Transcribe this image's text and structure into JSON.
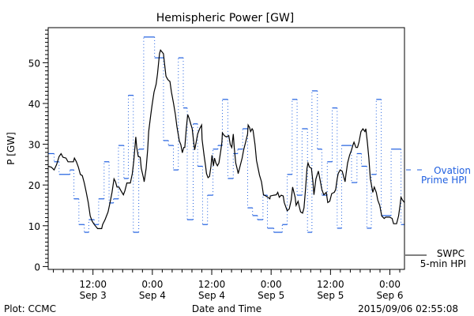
{
  "chart_data": {
    "type": "line",
    "title": "Hemispheric Power [GW]",
    "xlabel": "Date and Time",
    "ylabel": "P [GW]",
    "x_units": "hours since 2015/09/03 ~02:55",
    "xlim": [
      0,
      72
    ],
    "ylim": [
      -0.7,
      58.6
    ],
    "y_ticks": [
      0,
      10,
      20,
      30,
      40,
      50
    ],
    "y_minor_step": 1,
    "x_ticks": [
      {
        "h": 9.05,
        "time": "12:00",
        "date": "Sep 3"
      },
      {
        "h": 21.05,
        "time": "0:00",
        "date": "Sep 4"
      },
      {
        "h": 33.05,
        "time": "12:00",
        "date": "Sep 4"
      },
      {
        "h": 45.05,
        "time": "0:00",
        "date": "Sep 5"
      },
      {
        "h": 57.05,
        "time": "12:00",
        "date": "Sep 5"
      },
      {
        "h": 69.05,
        "time": "0:00",
        "date": "Sep 6"
      }
    ],
    "x_minor_step": 2,
    "series": [
      {
        "name": "Ovation Prime HPI",
        "legend": [
          "Ovation",
          "Prime HPI"
        ],
        "color": "#1f5fe0",
        "style": "step",
        "steps": [
          [
            0,
            27.7
          ],
          [
            1.2,
            25.7
          ],
          [
            2.2,
            22.6
          ],
          [
            4.4,
            23.7
          ],
          [
            5.2,
            16.6
          ],
          [
            6.2,
            10.3
          ],
          [
            7.3,
            8.4
          ],
          [
            8.2,
            11.5
          ],
          [
            9.3,
            10.3
          ],
          [
            10.2,
            16.6
          ],
          [
            11.3,
            25.7
          ],
          [
            12.3,
            15.6
          ],
          [
            13.2,
            16.6
          ],
          [
            14.2,
            29.7
          ],
          [
            15.3,
            21.6
          ],
          [
            16.2,
            42.0
          ],
          [
            17.2,
            8.4
          ],
          [
            18.3,
            28.8
          ],
          [
            19.3,
            56.3
          ],
          [
            21.5,
            51.2
          ],
          [
            23.3,
            30.9
          ],
          [
            24.3,
            29.7
          ],
          [
            25.3,
            23.7
          ],
          [
            26.3,
            51.2
          ],
          [
            27.3,
            38.9
          ],
          [
            28.1,
            11.5
          ],
          [
            29.3,
            35.0
          ],
          [
            30.2,
            24.6
          ],
          [
            31.2,
            10.3
          ],
          [
            32.2,
            17.5
          ],
          [
            33.3,
            28.8
          ],
          [
            34.3,
            29.7
          ],
          [
            35.2,
            41.0
          ],
          [
            36.3,
            21.6
          ],
          [
            37.4,
            27.7
          ],
          [
            38.3,
            28.8
          ],
          [
            39.3,
            33.8
          ],
          [
            40.3,
            14.4
          ],
          [
            41.3,
            12.5
          ],
          [
            42.3,
            11.5
          ],
          [
            43.4,
            17.5
          ],
          [
            44.3,
            9.4
          ],
          [
            45.6,
            8.4
          ],
          [
            47.3,
            10.3
          ],
          [
            48.3,
            22.6
          ],
          [
            49.3,
            41.0
          ],
          [
            50.3,
            17.5
          ],
          [
            51.3,
            33.8
          ],
          [
            52.4,
            8.4
          ],
          [
            53.3,
            43.1
          ],
          [
            54.4,
            28.8
          ],
          [
            55.3,
            17.5
          ],
          [
            56.4,
            25.7
          ],
          [
            57.4,
            38.9
          ],
          [
            58.4,
            9.4
          ],
          [
            59.3,
            29.7
          ],
          [
            61.3,
            20.6
          ],
          [
            62.4,
            27.7
          ],
          [
            63.3,
            24.6
          ],
          [
            64.4,
            9.4
          ],
          [
            65.3,
            22.6
          ],
          [
            66.3,
            41.0
          ],
          [
            67.3,
            12.5
          ],
          [
            69.3,
            28.8
          ],
          [
            71.3,
            10.3
          ],
          [
            72,
            10.3
          ]
        ]
      },
      {
        "name": "SWPC 5-min HPI",
        "legend": [
          "SWPC",
          "5-min HPI"
        ],
        "color": "#000000",
        "style": "line",
        "points": [
          [
            0,
            24.6
          ],
          [
            0.6,
            24.4
          ],
          [
            1.2,
            23.7
          ],
          [
            1.7,
            25.0
          ],
          [
            2.2,
            27.0
          ],
          [
            2.6,
            27.7
          ],
          [
            3.0,
            26.8
          ],
          [
            3.6,
            26.6
          ],
          [
            4.0,
            25.7
          ],
          [
            5.1,
            25.7
          ],
          [
            5.3,
            26.6
          ],
          [
            5.7,
            25.7
          ],
          [
            6.1,
            24.4
          ],
          [
            6.5,
            22.6
          ],
          [
            6.9,
            22.3
          ],
          [
            7.3,
            20.5
          ],
          [
            7.7,
            18.2
          ],
          [
            8.1,
            15.7
          ],
          [
            8.5,
            12.4
          ],
          [
            8.9,
            11.1
          ],
          [
            9.3,
            10.3
          ],
          [
            10.0,
            9.3
          ],
          [
            10.8,
            9.3
          ],
          [
            11.0,
            10.3
          ],
          [
            11.5,
            11.5
          ],
          [
            12.1,
            13.4
          ],
          [
            12.5,
            15.7
          ],
          [
            12.9,
            18.2
          ],
          [
            13.3,
            21.5
          ],
          [
            13.6,
            20.8
          ],
          [
            13.9,
            19.5
          ],
          [
            14.3,
            19.5
          ],
          [
            14.7,
            18.6
          ],
          [
            15.2,
            17.6
          ],
          [
            15.5,
            18.6
          ],
          [
            15.9,
            20.5
          ],
          [
            16.6,
            20.5
          ],
          [
            17.0,
            22.8
          ],
          [
            17.3,
            26.0
          ],
          [
            17.7,
            31.8
          ],
          [
            17.9,
            29.2
          ],
          [
            18.2,
            27.0
          ],
          [
            18.6,
            26.8
          ],
          [
            18.8,
            24.1
          ],
          [
            19.3,
            21.5
          ],
          [
            19.4,
            20.8
          ],
          [
            19.8,
            24.1
          ],
          [
            20.1,
            28.6
          ],
          [
            20.3,
            33.1
          ],
          [
            20.7,
            37.0
          ],
          [
            21.0,
            39.6
          ],
          [
            21.4,
            42.8
          ],
          [
            21.8,
            44.7
          ],
          [
            22.1,
            47.3
          ],
          [
            22.5,
            52.2
          ],
          [
            22.7,
            53.1
          ],
          [
            23.3,
            52.2
          ],
          [
            23.5,
            49.9
          ],
          [
            23.8,
            46.7
          ],
          [
            24.1,
            46.0
          ],
          [
            24.3,
            45.7
          ],
          [
            24.6,
            45.4
          ],
          [
            24.9,
            42.8
          ],
          [
            25.3,
            40.2
          ],
          [
            25.7,
            37.3
          ],
          [
            26.0,
            34.4
          ],
          [
            26.5,
            30.8
          ],
          [
            26.8,
            29.9
          ],
          [
            27.1,
            27.9
          ],
          [
            27.4,
            29.2
          ],
          [
            27.6,
            29.2
          ],
          [
            27.9,
            33.8
          ],
          [
            28.2,
            37.3
          ],
          [
            28.5,
            36.3
          ],
          [
            28.8,
            35.0
          ],
          [
            29.1,
            33.8
          ],
          [
            29.4,
            30.5
          ],
          [
            29.6,
            28.6
          ],
          [
            29.9,
            30.5
          ],
          [
            30.2,
            32.5
          ],
          [
            30.6,
            33.8
          ],
          [
            31.0,
            34.7
          ],
          [
            31.1,
            31.2
          ],
          [
            31.5,
            27.3
          ],
          [
            31.8,
            24.7
          ],
          [
            32.0,
            22.8
          ],
          [
            32.3,
            21.8
          ],
          [
            32.6,
            22.1
          ],
          [
            32.9,
            24.7
          ],
          [
            33.1,
            27.3
          ],
          [
            33.4,
            24.7
          ],
          [
            33.6,
            26.6
          ],
          [
            33.9,
            25.4
          ],
          [
            34.2,
            24.7
          ],
          [
            34.5,
            25.4
          ],
          [
            34.9,
            28.6
          ],
          [
            35.1,
            30.5
          ],
          [
            35.2,
            32.8
          ],
          [
            35.6,
            32.1
          ],
          [
            36.0,
            31.8
          ],
          [
            36.5,
            32.1
          ],
          [
            36.8,
            29.9
          ],
          [
            37.1,
            29.2
          ],
          [
            37.4,
            32.5
          ],
          [
            37.6,
            29.2
          ],
          [
            37.9,
            25.4
          ],
          [
            38.3,
            23.4
          ],
          [
            38.4,
            22.8
          ],
          [
            38.8,
            24.7
          ],
          [
            39.2,
            26.6
          ],
          [
            39.5,
            28.6
          ],
          [
            39.9,
            30.5
          ],
          [
            40.3,
            32.5
          ],
          [
            40.4,
            34.7
          ],
          [
            40.7,
            34.1
          ],
          [
            40.9,
            33.1
          ],
          [
            41.2,
            33.8
          ],
          [
            41.4,
            33.4
          ],
          [
            41.8,
            29.9
          ],
          [
            42.1,
            26.0
          ],
          [
            42.7,
            22.4
          ],
          [
            43.1,
            20.8
          ],
          [
            43.5,
            17.6
          ],
          [
            44.0,
            17.3
          ],
          [
            44.4,
            17.0
          ],
          [
            44.8,
            16.6
          ],
          [
            44.9,
            17.3
          ],
          [
            45.6,
            17.5
          ],
          [
            46.1,
            17.6
          ],
          [
            46.4,
            18.2
          ],
          [
            46.7,
            17.0
          ],
          [
            47.1,
            17.5
          ],
          [
            47.5,
            17.3
          ],
          [
            47.7,
            15.7
          ],
          [
            48.3,
            13.7
          ],
          [
            48.7,
            14.1
          ],
          [
            49.1,
            16.3
          ],
          [
            49.4,
            19.5
          ],
          [
            49.9,
            17.0
          ],
          [
            50.1,
            15.0
          ],
          [
            50.5,
            16.0
          ],
          [
            50.8,
            14.4
          ],
          [
            51.0,
            13.4
          ],
          [
            51.4,
            13.1
          ],
          [
            51.7,
            14.4
          ],
          [
            52.0,
            18.9
          ],
          [
            52.3,
            24.1
          ],
          [
            52.5,
            25.4
          ],
          [
            52.8,
            24.4
          ],
          [
            53.2,
            24.1
          ],
          [
            53.5,
            20.8
          ],
          [
            53.7,
            17.6
          ],
          [
            54.1,
            21.5
          ],
          [
            54.6,
            23.4
          ],
          [
            54.9,
            21.5
          ],
          [
            55.3,
            18.9
          ],
          [
            55.7,
            17.6
          ],
          [
            56.2,
            18.2
          ],
          [
            56.5,
            15.7
          ],
          [
            56.9,
            16.0
          ],
          [
            57.3,
            17.9
          ],
          [
            57.8,
            18.2
          ],
          [
            58.1,
            18.9
          ],
          [
            58.4,
            21.5
          ],
          [
            58.6,
            22.8
          ],
          [
            59.0,
            23.7
          ],
          [
            59.4,
            23.4
          ],
          [
            59.7,
            22.1
          ],
          [
            60.0,
            20.8
          ],
          [
            60.2,
            22.8
          ],
          [
            60.5,
            25.4
          ],
          [
            60.9,
            27.3
          ],
          [
            61.3,
            28.6
          ],
          [
            61.6,
            29.9
          ],
          [
            61.8,
            30.5
          ],
          [
            62.2,
            29.2
          ],
          [
            62.5,
            29.2
          ],
          [
            62.8,
            30.5
          ],
          [
            63.2,
            33.1
          ],
          [
            63.6,
            33.8
          ],
          [
            64.0,
            33.1
          ],
          [
            64.2,
            33.8
          ],
          [
            64.5,
            30.5
          ],
          [
            64.8,
            26.6
          ],
          [
            65.1,
            21.5
          ],
          [
            65.6,
            18.2
          ],
          [
            65.9,
            19.5
          ],
          [
            66.3,
            18.2
          ],
          [
            66.6,
            16.3
          ],
          [
            67.0,
            15.0
          ],
          [
            67.4,
            12.4
          ],
          [
            67.9,
            11.8
          ],
          [
            68.2,
            12.1
          ],
          [
            68.6,
            12.1
          ],
          [
            69.0,
            12.1
          ],
          [
            69.5,
            11.8
          ],
          [
            69.8,
            10.5
          ],
          [
            70.4,
            10.5
          ],
          [
            70.8,
            12.4
          ],
          [
            71.1,
            15.0
          ],
          [
            71.3,
            17.0
          ],
          [
            71.6,
            16.3
          ],
          [
            72.0,
            15.7
          ]
        ]
      }
    ]
  },
  "footer": {
    "left": "Plot: CCMC",
    "center": "Date and Time",
    "right": "2015/09/06 02:55:08"
  }
}
